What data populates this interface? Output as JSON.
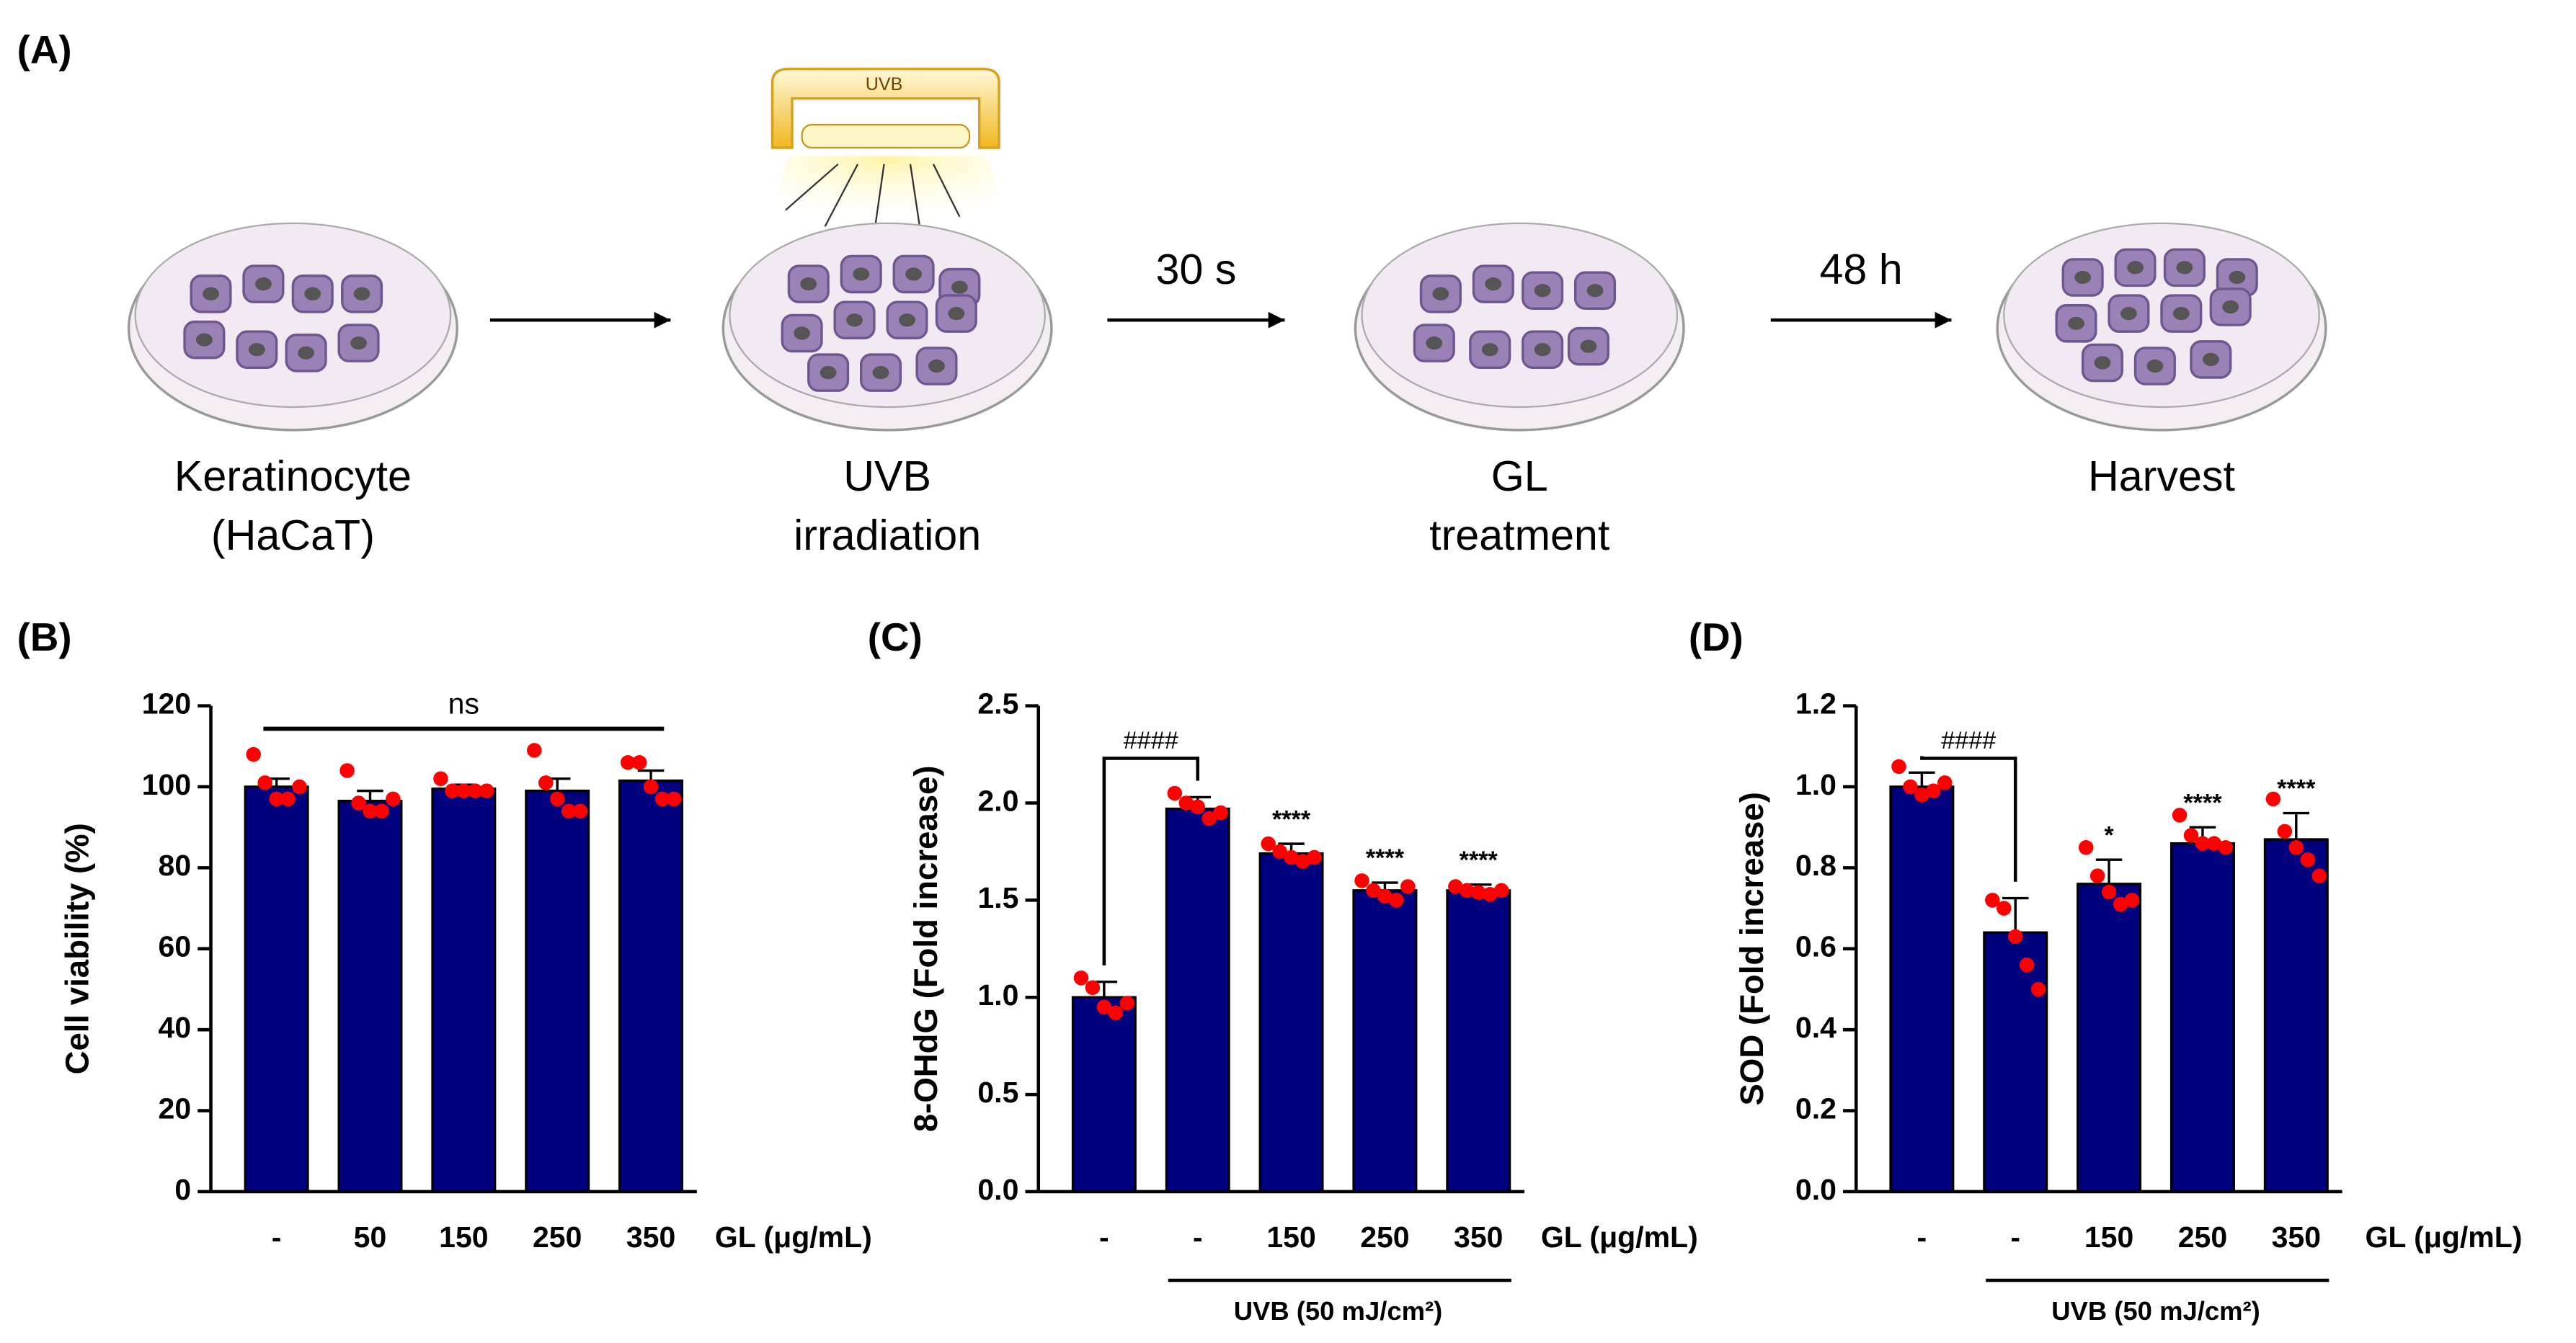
{
  "panel_a": {
    "label": "(A)",
    "lamp_label": "UVB",
    "steps": [
      [
        "Keratinocyte",
        "(HaCaT)"
      ],
      [
        "UVB",
        "irradiation"
      ],
      [
        "GL",
        "treatment"
      ],
      [
        "Harvest"
      ]
    ],
    "arrow_labels": [
      "30 s",
      "48 h"
    ]
  },
  "chart_data": [
    {
      "type": "bar",
      "panel_label": "(B)",
      "ylabel": "Cell viability (%)",
      "xlabel": "GL (μg/mL)",
      "color": "#00007f",
      "point_color": "#ff0000",
      "categories": [
        "-",
        "50",
        "150",
        "250",
        "350"
      ],
      "values": [
        100,
        96.5,
        99.5,
        99,
        101.5
      ],
      "errors": [
        2,
        2.5,
        1,
        3,
        2.5
      ],
      "points": [
        [
          108,
          101,
          97,
          97,
          100
        ],
        [
          104,
          96,
          94,
          94,
          97
        ],
        [
          102,
          99,
          99,
          99,
          99
        ],
        [
          109,
          101,
          97,
          94,
          94
        ],
        [
          106,
          106,
          100,
          97,
          97
        ]
      ],
      "ylim": [
        0,
        120
      ],
      "yticks": [
        0,
        20,
        40,
        60,
        80,
        100,
        120
      ],
      "annotation": "ns"
    },
    {
      "type": "bar",
      "panel_label": "(C)",
      "ylabel": "8-OHdG (Fold increase)",
      "xlabel": "GL (μg/mL)",
      "color": "#00007f",
      "point_color": "#ff0000",
      "categories": [
        "-",
        "-",
        "150",
        "250",
        "350"
      ],
      "values": [
        1.0,
        1.97,
        1.74,
        1.55,
        1.55
      ],
      "errors": [
        0.08,
        0.06,
        0.05,
        0.04,
        0.03
      ],
      "points": [
        [
          1.1,
          1.05,
          0.95,
          0.92,
          0.97
        ],
        [
          2.05,
          2.0,
          1.98,
          1.92,
          1.95
        ],
        [
          1.79,
          1.75,
          1.72,
          1.7,
          1.72
        ],
        [
          1.6,
          1.55,
          1.52,
          1.5,
          1.57
        ],
        [
          1.57,
          1.55,
          1.54,
          1.53,
          1.55
        ]
      ],
      "ylim": [
        0,
        2.5
      ],
      "yticks": [
        {
          "value": 0,
          "label": "0.0"
        },
        0.5,
        {
          "value": 1,
          "label": "1.0"
        },
        1.5,
        {
          "value": 2,
          "label": "2.0"
        },
        2.5
      ],
      "bracket_label": "####",
      "significance": [
        null,
        null,
        "****",
        "****",
        "****"
      ],
      "group_label": "UVB (50 mJ/cm²)"
    },
    {
      "type": "bar",
      "panel_label": "(D)",
      "ylabel": "SOD (Fold increase)",
      "xlabel": "GL (μg/mL)",
      "color": "#00007f",
      "point_color": "#ff0000",
      "categories": [
        "-",
        "-",
        "150",
        "250",
        "350"
      ],
      "values": [
        1.0,
        0.64,
        0.76,
        0.86,
        0.87
      ],
      "errors": [
        0.035,
        0.085,
        0.06,
        0.04,
        0.065
      ],
      "points": [
        [
          1.05,
          1.0,
          0.98,
          0.99,
          1.01
        ],
        [
          0.72,
          0.7,
          0.63,
          0.56,
          0.5
        ],
        [
          0.85,
          0.78,
          0.74,
          0.71,
          0.72
        ],
        [
          0.93,
          0.88,
          0.86,
          0.86,
          0.85
        ],
        [
          0.97,
          0.89,
          0.85,
          0.82,
          0.78
        ]
      ],
      "ylim": [
        0,
        1.2
      ],
      "yticks": [
        {
          "value": 0,
          "label": "0.0"
        },
        0.2,
        0.4,
        0.6,
        0.8,
        {
          "value": 1,
          "label": "1.0"
        },
        1.2
      ],
      "bracket_label": "####",
      "significance": [
        null,
        null,
        "*",
        "****",
        "****"
      ],
      "group_label": "UVB (50 mJ/cm²)"
    }
  ]
}
